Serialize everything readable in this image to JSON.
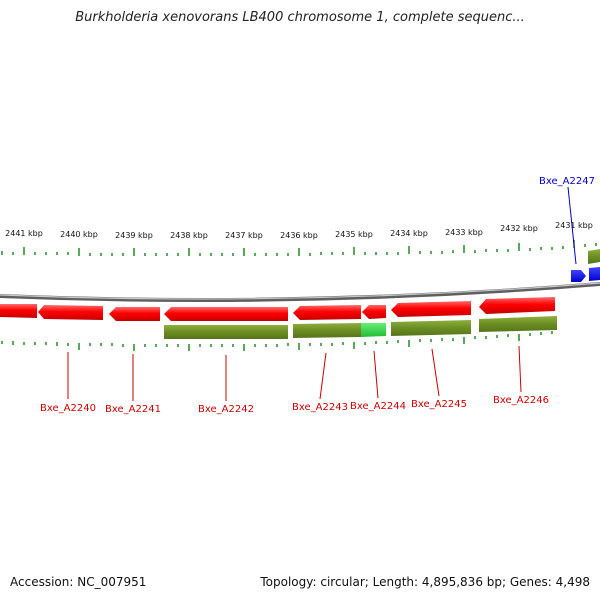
{
  "title": "Burkholderia xenovorans LB400 chromosome 1, complete sequenc...",
  "footer": {
    "accession": "Accession: NC_007951",
    "topology": "Topology: circular; Length: 4,895,836 bp; Genes: 4,498"
  },
  "colors": {
    "gene_red": "#ff0000",
    "gene_blue": "#0000ff",
    "cds_green": "#6b8e23",
    "cds_highlight": "#33dd44",
    "tick_green": "#228b22",
    "backbone": "#888888",
    "label_red": "#cc0000",
    "label_blue": "#0000cc"
  },
  "scale_labels": [
    "2441 kbp",
    "2440 kbp",
    "2439 kbp",
    "2438 kbp",
    "2437 kbp",
    "2436 kbp",
    "2435 kbp",
    "2434 kbp",
    "2433 kbp",
    "2432 kbp",
    "2431 kbp"
  ],
  "gene_labels": [
    "Bxe_A2240",
    "Bxe_A2241",
    "Bxe_A2242",
    "Bxe_A2243",
    "Bxe_A2244",
    "Bxe_A2245",
    "Bxe_A2246",
    "Bxe_A2247"
  ]
}
